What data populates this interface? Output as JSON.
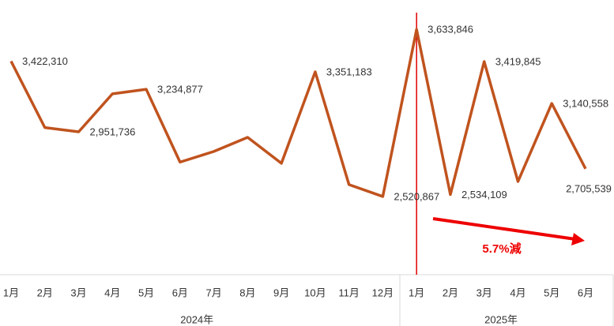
{
  "chart_data": {
    "type": "line",
    "categories": [
      "1月",
      "2月",
      "3月",
      "4月",
      "5月",
      "6月",
      "7月",
      "8月",
      "9月",
      "10月",
      "11月",
      "12月",
      "1月",
      "2月",
      "3月",
      "4月",
      "5月",
      "6月"
    ],
    "groups": [
      {
        "label": "2024年",
        "count": 12
      },
      {
        "label": "2025年",
        "count": 6
      }
    ],
    "series": [
      {
        "color": "#c0531e",
        "values": [
          3422310,
          2980000,
          2951736,
          3205000,
          3234877,
          2750000,
          2821000,
          2915000,
          2742000,
          3351183,
          2600000,
          2520867,
          3633846,
          2534109,
          3419845,
          2621000,
          3140558,
          2705539
        ],
        "value_labels": [
          "3,422,310",
          null,
          "2,951,736",
          null,
          "3,234,877",
          null,
          null,
          null,
          null,
          "3,351,183",
          null,
          "2,520,867",
          "3,633,846",
          "2,534,109",
          "3,419,845",
          null,
          "3,140,558",
          "2,705,539"
        ]
      }
    ],
    "ylim": [
      2000000,
      3830000
    ],
    "annotation": {
      "text": "5.7%減",
      "color": "#ee0000"
    },
    "marker_line": {
      "index": 12,
      "color": "#e00000"
    }
  }
}
